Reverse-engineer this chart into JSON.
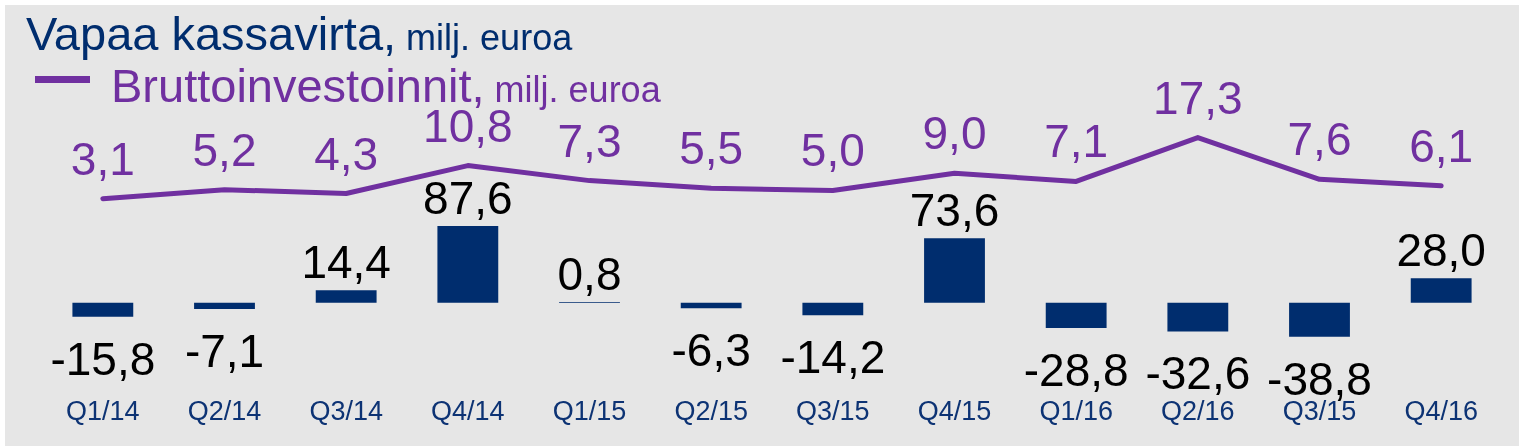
{
  "chart_data": [
    {
      "type": "bar",
      "categories": [
        "Q1/14",
        "Q2/14",
        "Q3/14",
        "Q4/14",
        "Q1/15",
        "Q2/15",
        "Q3/15",
        "Q4/15",
        "Q1/16",
        "Q2/16",
        "Q3/15",
        "Q4/16"
      ],
      "series": [
        {
          "name": "Vapaa kassavirta, milj. euroa",
          "color": "#002d6e",
          "values": [
            -15.8,
            -7.1,
            14.4,
            87.6,
            0.8,
            -6.3,
            -14.2,
            73.6,
            -28.8,
            -32.6,
            -38.8,
            28.0
          ],
          "value_labels": [
            "-15,8",
            "-7,1",
            "14,4",
            "87,6",
            "0,8",
            "-6,3",
            "-14,2",
            "73,6",
            "-28,8",
            "-32,6",
            "-38,8",
            "28,0"
          ]
        }
      ],
      "legend": "top left",
      "grid": false
    },
    {
      "type": "line",
      "categories": [
        null,
        null,
        null,
        null,
        null,
        null,
        null,
        null,
        null,
        null,
        null,
        null
      ],
      "series": [
        {
          "name": "Bruttoinvestoinnit, milj. euroa",
          "color": "#7030a0",
          "values": [
            3.1,
            5.2,
            4.3,
            10.8,
            7.3,
            5.5,
            5.0,
            9.0,
            7.1,
            17.3,
            7.6,
            6.1
          ],
          "value_labels": [
            "3,1",
            "5,2",
            "4,3",
            "10,8",
            "7,3",
            "5,5",
            "5,0",
            "9,0",
            "7,1",
            "17,3",
            "7,6",
            "6,1"
          ]
        }
      ],
      "legend": "top left",
      "grid": false,
      "marker": "none",
      "line_style": "solid"
    }
  ]
}
